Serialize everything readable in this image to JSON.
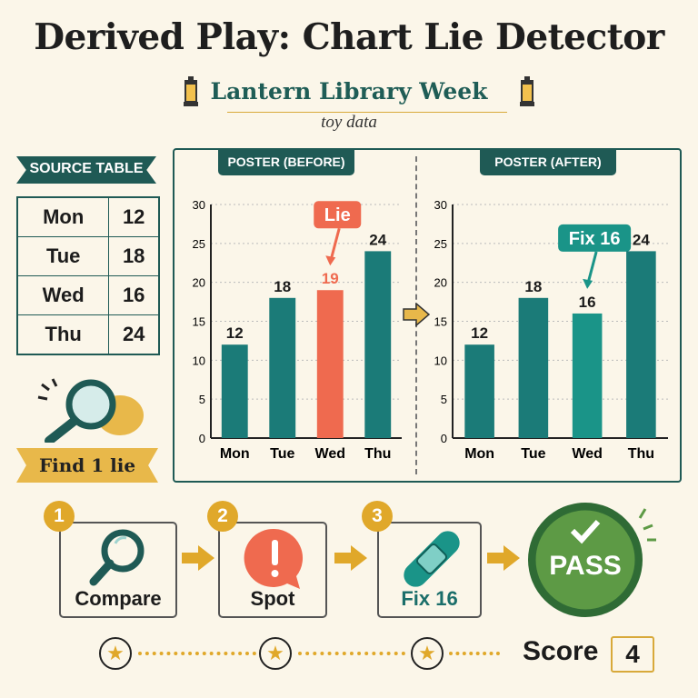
{
  "title": "Derived Play: Chart Lie Detector",
  "subtitle": "Lantern Library Week",
  "note": "toy data",
  "source_table": {
    "label": "SOURCE TABLE",
    "rows": [
      [
        "Mon",
        "12"
      ],
      [
        "Tue",
        "18"
      ],
      [
        "Wed",
        "16"
      ],
      [
        "Thu",
        "24"
      ]
    ]
  },
  "find_label": "Find 1 lie",
  "colors": {
    "teal": "#1b7b78",
    "lie": "#ef6a4f",
    "dark_green": "#1f5a55",
    "gold": "#e0a82a",
    "pass_green": "#5d9a45",
    "fix": "#1a9488"
  },
  "chart_data": [
    {
      "type": "bar",
      "title": "POSTER (BEFORE)",
      "categories": [
        "Mon",
        "Tue",
        "Wed",
        "Thu"
      ],
      "values": [
        12,
        18,
        19,
        24
      ],
      "ylim": [
        0,
        30
      ],
      "yticks": [
        0,
        5,
        10,
        15,
        20,
        25,
        30
      ],
      "grid": true,
      "highlight": {
        "category": "Wed",
        "label": "Lie"
      }
    },
    {
      "type": "bar",
      "title": "POSTER (AFTER)",
      "categories": [
        "Mon",
        "Tue",
        "Wed",
        "Thu"
      ],
      "values": [
        12,
        18,
        16,
        24
      ],
      "ylim": [
        0,
        30
      ],
      "yticks": [
        0,
        5,
        10,
        15,
        20,
        25,
        30
      ],
      "grid": true,
      "highlight": {
        "category": "Wed",
        "label": "Fix 16"
      }
    }
  ],
  "steps": [
    {
      "num": "1",
      "label": "Compare",
      "icon": "magnifier-icon"
    },
    {
      "num": "2",
      "label": "Spot",
      "icon": "alert-bubble-icon"
    },
    {
      "num": "3",
      "label": "Fix 16",
      "icon": "bandage-icon"
    }
  ],
  "pass_label": "PASS",
  "score": {
    "label": "Score",
    "value": "4"
  }
}
